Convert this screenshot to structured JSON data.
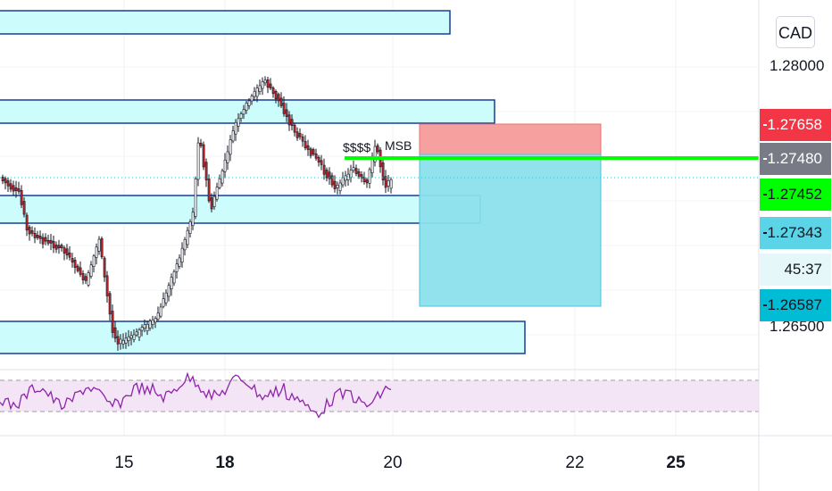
{
  "currency": "CAD",
  "price_scale": {
    "labels": [
      "1.28000",
      "1.26500"
    ]
  },
  "price_tags": [
    {
      "id": "stop",
      "value": "1.27658",
      "bg": "#f23645",
      "fg": "#ffffff"
    },
    {
      "id": "entry",
      "value": "1.27480",
      "bg": "#787b86",
      "fg": "#ffffff"
    },
    {
      "id": "last",
      "value": "1.27452",
      "bg": "#00ff00",
      "fg": "#131722"
    },
    {
      "id": "zone",
      "value": "1.27343",
      "bg": "#5ad4e6",
      "fg": "#131722"
    },
    {
      "id": "countdown",
      "value": "45:37",
      "bg": "#e6f7fa",
      "fg": "#131722"
    },
    {
      "id": "target",
      "value": "1.26587",
      "bg": "#00bcd4",
      "fg": "#131722"
    }
  ],
  "annotations": {
    "liquidity": "$$$$",
    "msb": "MSB"
  },
  "time_axis": [
    "15",
    "18",
    "20",
    "22",
    "25"
  ],
  "colors": {
    "zone_fill": "#ccfcfc",
    "zone_border": "#1a3d9c",
    "stop_fill": "#f7a0a0",
    "target_fill": "#8ce0ec",
    "green_line": "#00ff00",
    "up_candle": "#ffffff",
    "down_candle": "#c0262b",
    "rsi": "#8e24aa",
    "rsi_band": "#f3e5f5"
  }
}
